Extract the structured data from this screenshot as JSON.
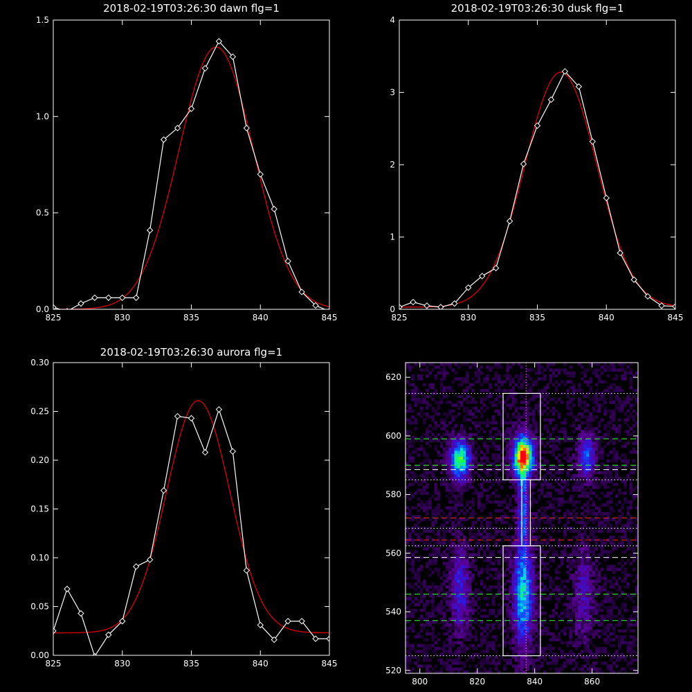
{
  "panels": [
    {
      "id": "dawn",
      "type": "line",
      "title": "2018-02-19T03:26:30 dawn flg=1",
      "xlim": [
        825,
        845
      ],
      "ylim": [
        0,
        1.5
      ],
      "xticks": [
        825,
        830,
        835,
        840,
        845
      ],
      "xtick_labels": [
        "825",
        "830",
        "835",
        "840",
        "845"
      ],
      "yticks": [
        0,
        0.5,
        1.0,
        1.5
      ],
      "ytick_labels": [
        "0.0",
        "0.5",
        "1.0",
        "1.5"
      ],
      "data": {
        "x": [
          825,
          826,
          827,
          828,
          829,
          830,
          831,
          832,
          833,
          834,
          835,
          836,
          837,
          838,
          839,
          840,
          841,
          842,
          843,
          844,
          845
        ],
        "y": [
          0.01,
          -0.01,
          0.03,
          0.06,
          0.06,
          0.06,
          0.06,
          0.41,
          0.88,
          0.94,
          1.04,
          1.25,
          1.39,
          1.31,
          0.94,
          0.7,
          0.52,
          0.25,
          0.09,
          0.02,
          -0.01
        ]
      },
      "fit": {
        "amplitude": 1.36,
        "center": 836.8,
        "sigma": 2.7,
        "offset": 0.0
      }
    },
    {
      "id": "dusk",
      "type": "line",
      "title": "2018-02-19T03:26:30 dusk flg=1",
      "xlim": [
        825,
        845
      ],
      "ylim": [
        0,
        4
      ],
      "xticks": [
        825,
        830,
        835,
        840,
        845
      ],
      "xtick_labels": [
        "825",
        "830",
        "835",
        "840",
        "845"
      ],
      "yticks": [
        0,
        1,
        2,
        3,
        4
      ],
      "ytick_labels": [
        "0",
        "1",
        "2",
        "3",
        "4"
      ],
      "data": {
        "x": [
          825,
          826,
          827,
          828,
          829,
          830,
          831,
          832,
          833,
          834,
          835,
          836,
          837,
          838,
          839,
          840,
          841,
          842,
          843,
          844,
          845
        ],
        "y": [
          0.03,
          0.1,
          0.05,
          0.03,
          0.08,
          0.3,
          0.46,
          0.57,
          1.22,
          2.01,
          2.54,
          2.9,
          3.29,
          3.08,
          2.32,
          1.54,
          0.78,
          0.41,
          0.18,
          0.05,
          0.04
        ]
      },
      "fit": {
        "amplitude": 3.25,
        "center": 836.7,
        "sigma": 2.6,
        "offset": 0.03
      }
    },
    {
      "id": "aurora",
      "type": "line",
      "title": "2018-02-19T03:26:30 aurora flg=1",
      "xlim": [
        825,
        845
      ],
      "ylim": [
        0,
        0.3
      ],
      "xticks": [
        825,
        830,
        835,
        840,
        845
      ],
      "xtick_labels": [
        "825",
        "830",
        "835",
        "840",
        "845"
      ],
      "yticks": [
        0,
        0.05,
        0.1,
        0.15,
        0.2,
        0.25,
        0.3
      ],
      "ytick_labels": [
        "0.00",
        "0.05",
        "0.10",
        "0.15",
        "0.20",
        "0.25",
        "0.30"
      ],
      "data": {
        "x": [
          825,
          826,
          827,
          828,
          829,
          830,
          831,
          832,
          833,
          834,
          835,
          836,
          837,
          838,
          839,
          840,
          841,
          842,
          843,
          844,
          845
        ],
        "y": [
          0.025,
          0.068,
          0.043,
          -0.001,
          0.021,
          0.035,
          0.091,
          0.098,
          0.169,
          0.245,
          0.243,
          0.208,
          0.252,
          0.209,
          0.087,
          0.031,
          0.016,
          0.035,
          0.035,
          0.017,
          0.017
        ]
      },
      "fit": {
        "amplitude": 0.238,
        "center": 835.5,
        "sigma": 2.3,
        "offset": 0.023
      }
    },
    {
      "id": "image",
      "type": "heatmap",
      "title": "",
      "xlim": [
        795,
        876
      ],
      "ylim": [
        519,
        625
      ],
      "xticks": [
        800,
        820,
        840,
        860
      ],
      "xtick_labels": [
        "800",
        "820",
        "840",
        "860"
      ],
      "yticks": [
        520,
        540,
        560,
        580,
        600,
        620
      ],
      "ytick_labels": [
        "520",
        "540",
        "560",
        "580",
        "600",
        "620"
      ],
      "blobs": [
        {
          "x": 814,
          "y": 592,
          "sx": 2.4,
          "sy": 4.5,
          "a": 0.72
        },
        {
          "x": 814,
          "y": 548,
          "sx": 2.2,
          "sy": 10.0,
          "a": 0.32
        },
        {
          "x": 836,
          "y": 593,
          "sx": 2.5,
          "sy": 5.0,
          "a": 1.0
        },
        {
          "x": 836,
          "y": 575,
          "sx": 1.3,
          "sy": 9.0,
          "a": 0.4
        },
        {
          "x": 836,
          "y": 546,
          "sx": 2.4,
          "sy": 12.0,
          "a": 0.58
        },
        {
          "x": 858,
          "y": 593,
          "sx": 2.2,
          "sy": 5.0,
          "a": 0.42
        },
        {
          "x": 857,
          "y": 546,
          "sx": 2.5,
          "sy": 11.0,
          "a": 0.22
        }
      ],
      "boxes": [
        {
          "x0": 829,
          "x1": 842,
          "y0": 585,
          "y1": 614.5
        },
        {
          "x0": 829,
          "x1": 842,
          "y0": 525,
          "y1": 562.5
        },
        {
          "x0": 835.5,
          "x1": 838.5,
          "y0": 562.5,
          "y1": 585
        }
      ],
      "vline_x": 837,
      "hlines": [
        {
          "y": 614.5,
          "style": "dotted",
          "color": "#ffffff"
        },
        {
          "y": 599,
          "style": "dashed",
          "color": "#33ff33"
        },
        {
          "y": 590,
          "style": "dashed",
          "color": "#33ff33"
        },
        {
          "y": 588.5,
          "style": "dashed",
          "color": "#ffffff"
        },
        {
          "y": 585,
          "style": "dotted",
          "color": "#ffffff"
        },
        {
          "y": 572,
          "style": "dashed",
          "color": "#ff2020"
        },
        {
          "y": 568.5,
          "style": "dotted",
          "color": "#ffffff"
        },
        {
          "y": 564.5,
          "style": "dashed",
          "color": "#ff2020"
        },
        {
          "y": 562.5,
          "style": "dotted",
          "color": "#ffffff"
        },
        {
          "y": 558.5,
          "style": "dashed",
          "color": "#ffffff"
        },
        {
          "y": 546,
          "style": "dashed",
          "color": "#33ff33"
        },
        {
          "y": 537,
          "style": "dashed",
          "color": "#33ff33"
        },
        {
          "y": 525,
          "style": "dotted",
          "color": "#ffffff"
        }
      ]
    }
  ]
}
